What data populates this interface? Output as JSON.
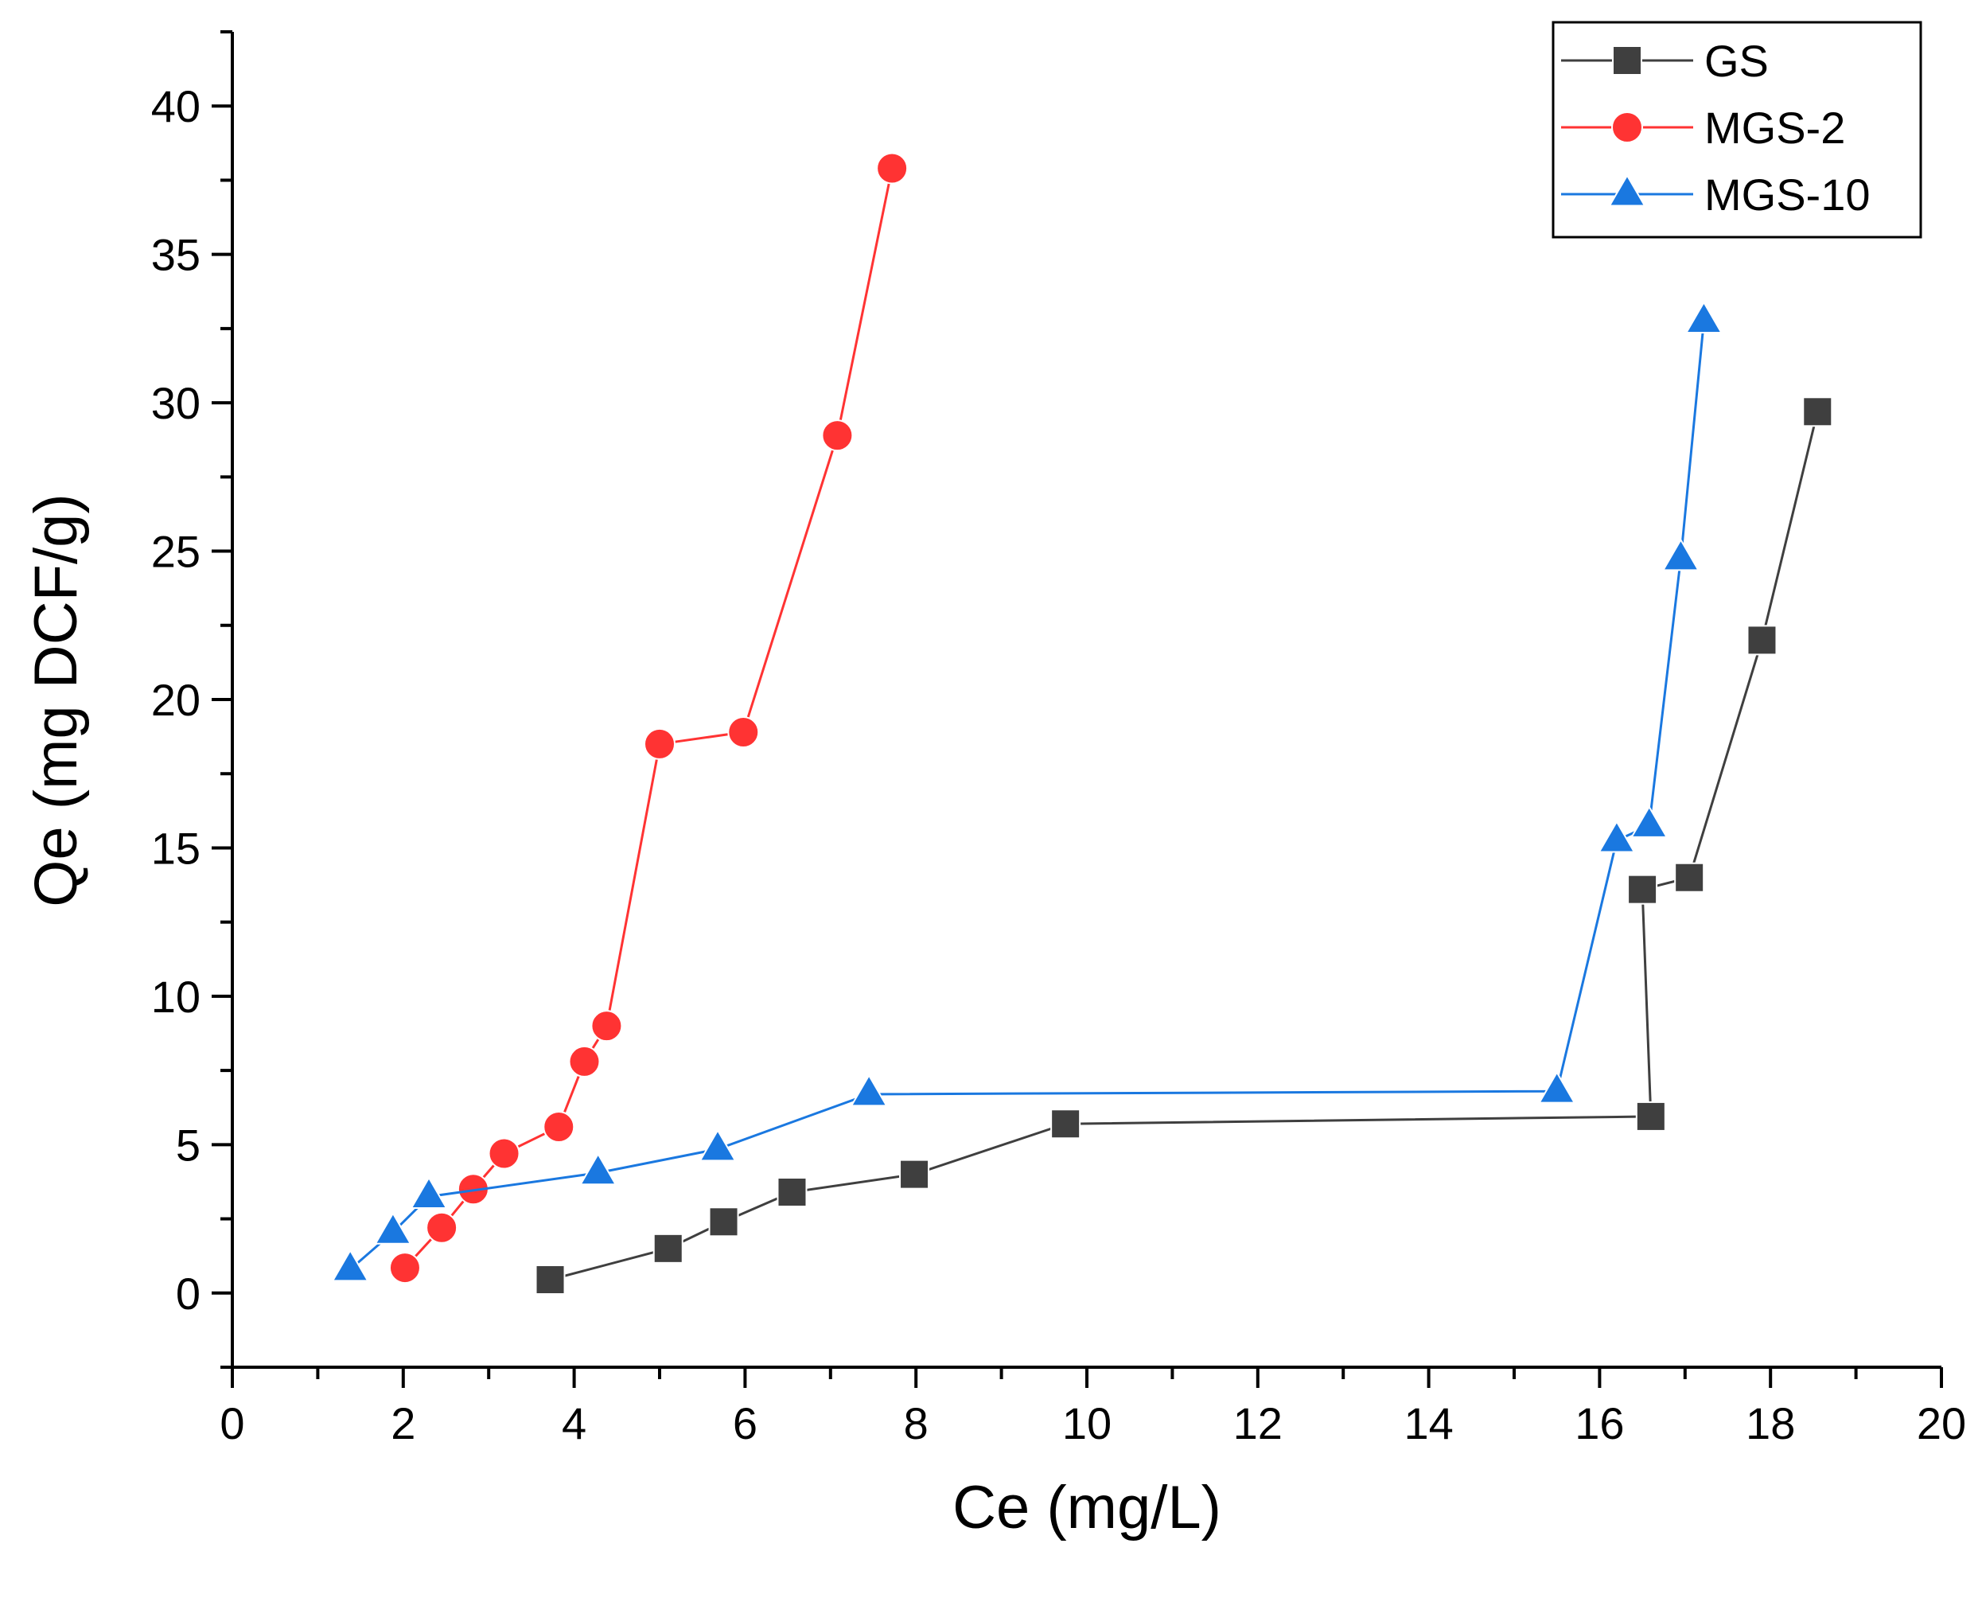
{
  "chart_data": {
    "type": "line",
    "title": "",
    "xlabel": "Ce (mg/L)",
    "ylabel": "Qe (mg DCF/g)",
    "xlim": [
      0,
      20
    ],
    "ylim": [
      -2.5,
      42.5
    ],
    "x_ticks": [
      0,
      2,
      4,
      6,
      8,
      10,
      12,
      14,
      16,
      18,
      20
    ],
    "x_tick_labels": [
      "0",
      "2",
      "4",
      "6",
      "8",
      "10",
      "12",
      "14",
      "16",
      "18",
      "20"
    ],
    "y_ticks": [
      0,
      5,
      10,
      15,
      20,
      25,
      30,
      35,
      40
    ],
    "y_tick_labels": [
      "0",
      "5",
      "10",
      "15",
      "20",
      "25",
      "30",
      "35",
      "40"
    ],
    "grid": false,
    "legend_position": "top-right",
    "series": [
      {
        "name": "GS",
        "color": "#3f3f3f",
        "marker": "square",
        "x": [
          3.72,
          5.1,
          5.75,
          6.55,
          7.98,
          9.75,
          16.6,
          16.5,
          17.05,
          17.9,
          18.55
        ],
        "y": [
          0.45,
          1.5,
          2.4,
          3.4,
          4.0,
          5.7,
          5.95,
          13.6,
          14.0,
          22.0,
          29.7
        ]
      },
      {
        "name": "MGS-2",
        "color": "#ff3333",
        "marker": "circle",
        "x": [
          2.02,
          2.45,
          2.82,
          3.18,
          3.82,
          4.12,
          4.38,
          5.0,
          5.98,
          7.08,
          7.72
        ],
        "y": [
          0.85,
          2.2,
          3.5,
          4.7,
          5.6,
          7.8,
          9.0,
          18.5,
          18.9,
          28.9,
          37.9
        ]
      },
      {
        "name": "MGS-10",
        "color": "#1a78e0",
        "marker": "triangle",
        "x": [
          1.38,
          1.88,
          2.3,
          4.28,
          5.68,
          7.45,
          15.5,
          16.2,
          16.58,
          16.95,
          17.22
        ],
        "y": [
          0.8,
          2.05,
          3.25,
          4.05,
          4.85,
          6.7,
          6.8,
          15.25,
          15.75,
          24.75,
          32.75
        ]
      }
    ]
  }
}
